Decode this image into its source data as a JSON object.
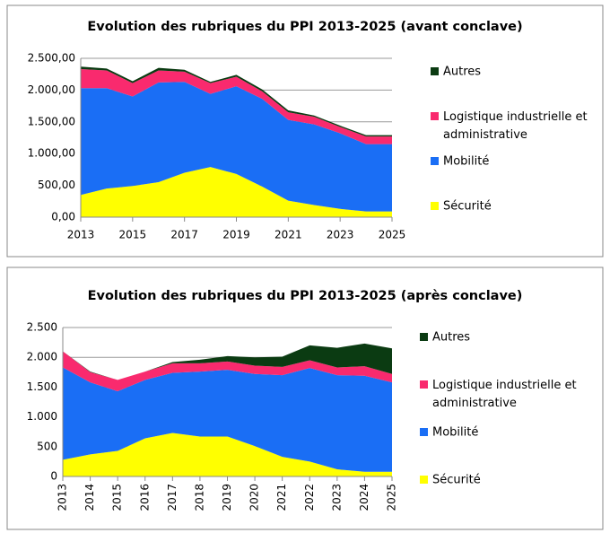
{
  "chart_data": [
    {
      "type": "stacked_area",
      "title": "Evolution des rubriques du PPI 2013-2025 (avant conclave)",
      "x": [
        2013,
        2014,
        2015,
        2016,
        2017,
        2018,
        2019,
        2020,
        2021,
        2022,
        2023,
        2024,
        2025
      ],
      "xlim": [
        2013,
        2025
      ],
      "xticks": [
        2013,
        2015,
        2017,
        2019,
        2021,
        2023,
        2025
      ],
      "ylim": [
        0,
        2500
      ],
      "yticks": [
        {
          "value": 0,
          "label": "0,00"
        },
        {
          "value": 500,
          "label": "500,00"
        },
        {
          "value": 1000,
          "label": "1.000,00"
        },
        {
          "value": 1500,
          "label": "1.500,00"
        },
        {
          "value": 2000,
          "label": "2.000,00"
        },
        {
          "value": 2500,
          "label": "2.500,00"
        }
      ],
      "grid": true,
      "series": [
        {
          "name": "Sécurité",
          "color": "#ffff00",
          "values": [
            350,
            450,
            490,
            550,
            700,
            790,
            680,
            480,
            260,
            190,
            130,
            90,
            90
          ]
        },
        {
          "name": "Mobilité",
          "color": "#1a6ef5",
          "values": [
            1680,
            1580,
            1410,
            1570,
            1430,
            1150,
            1380,
            1380,
            1270,
            1270,
            1190,
            1060,
            1060
          ]
        },
        {
          "name": "Logistique industrielle et administrative",
          "color": "#f92a6e",
          "values": [
            300,
            280,
            210,
            190,
            160,
            170,
            150,
            120,
            120,
            120,
            100,
            120,
            120
          ]
        },
        {
          "name": "Autres",
          "color": "#0b3b12",
          "values": [
            40,
            30,
            30,
            40,
            30,
            20,
            30,
            30,
            30,
            20,
            20,
            20,
            20
          ]
        }
      ]
    },
    {
      "type": "stacked_area",
      "title": "Evolution des rubriques du PPI 2013-2025 (après conclave)",
      "x": [
        2013,
        2014,
        2015,
        2016,
        2017,
        2018,
        2019,
        2020,
        2021,
        2022,
        2023,
        2024,
        2025
      ],
      "xlim": [
        2013,
        2025
      ],
      "xticks": [
        2013,
        2014,
        2015,
        2016,
        2017,
        2018,
        2019,
        2020,
        2021,
        2022,
        2023,
        2024,
        2025
      ],
      "ylim": [
        0,
        2500
      ],
      "yticks": [
        0,
        500,
        {
          "value": 1000,
          "label": "1.000"
        },
        {
          "value": 1500,
          "label": "1.500"
        },
        {
          "value": 2000,
          "label": "2.000"
        },
        {
          "value": 2500,
          "label": "2.500"
        }
      ],
      "grid": true,
      "series": [
        {
          "name": "Sécurité",
          "color": "#ffff00",
          "values": [
            280,
            370,
            430,
            640,
            730,
            670,
            670,
            510,
            330,
            250,
            120,
            80,
            80
          ]
        },
        {
          "name": "Mobilité",
          "color": "#1a6ef5",
          "values": [
            1550,
            1210,
            1000,
            980,
            1010,
            1090,
            1120,
            1210,
            1370,
            1570,
            1580,
            1610,
            1500
          ]
        },
        {
          "name": "Logistique industrielle et administrative",
          "color": "#f92a6e",
          "values": [
            270,
            170,
            190,
            140,
            160,
            140,
            140,
            140,
            140,
            130,
            130,
            160,
            140
          ]
        },
        {
          "name": "Autres",
          "color": "#0b3b12",
          "values": [
            0,
            10,
            0,
            0,
            20,
            60,
            90,
            140,
            170,
            250,
            330,
            380,
            430
          ]
        }
      ]
    }
  ]
}
